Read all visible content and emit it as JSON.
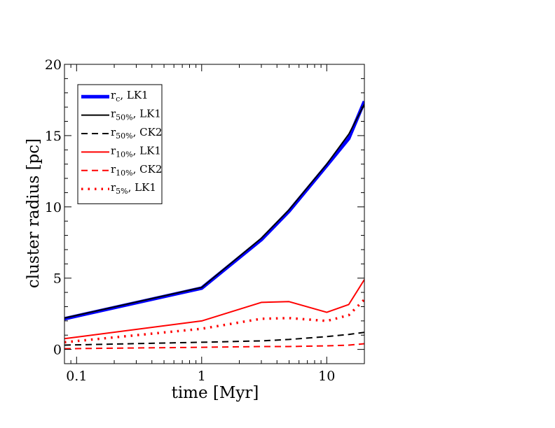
{
  "chart_data": {
    "type": "line",
    "xscale": "log",
    "xlabel": "time [Myr]",
    "ylabel": "cluster radius [pc]",
    "xlim": [
      0.08,
      20
    ],
    "ylim": [
      -1,
      20
    ],
    "xticks": [
      {
        "value": 0.1,
        "label": "0.1"
      },
      {
        "value": 1,
        "label": "1"
      },
      {
        "value": 10,
        "label": "10"
      }
    ],
    "yticks": [
      {
        "value": 0,
        "label": "0"
      },
      {
        "value": 5,
        "label": "5"
      },
      {
        "value": 10,
        "label": "10"
      },
      {
        "value": 15,
        "label": "15"
      },
      {
        "value": 20,
        "label": "20"
      }
    ],
    "legend_position": "top-left",
    "series": [
      {
        "name": "rc_lk1",
        "label_main": "r",
        "label_sub": "c",
        "label_suffix": ",    LK1",
        "color": "#0000ff",
        "style": "solid-thick",
        "x": [
          0.08,
          1,
          3,
          5,
          10,
          15,
          20
        ],
        "y": [
          2.15,
          4.3,
          7.7,
          9.7,
          12.9,
          14.8,
          17.4
        ]
      },
      {
        "name": "r50_lk1",
        "label_main": "r",
        "label_sub": "50%",
        "label_suffix": ", LK1",
        "color": "#000000",
        "style": "solid",
        "x": [
          0.08,
          1,
          3,
          5,
          10,
          15,
          20
        ],
        "y": [
          2.2,
          4.35,
          7.8,
          9.8,
          13.0,
          15.1,
          17.2
        ]
      },
      {
        "name": "r50_ck2",
        "label_main": "r",
        "label_sub": "50%",
        "label_suffix": ", CK2",
        "color": "#000000",
        "style": "dashed",
        "x": [
          0.08,
          1,
          3,
          5,
          10,
          15,
          20
        ],
        "y": [
          0.3,
          0.5,
          0.6,
          0.7,
          0.9,
          1.05,
          1.2
        ]
      },
      {
        "name": "r10_lk1",
        "label_main": "r",
        "label_sub": "10%",
        "label_suffix": ", LK1",
        "color": "#ff0000",
        "style": "solid",
        "x": [
          0.08,
          1,
          3,
          5,
          10,
          15,
          20
        ],
        "y": [
          0.75,
          2.0,
          3.3,
          3.35,
          2.6,
          3.15,
          4.9
        ]
      },
      {
        "name": "r10_ck2",
        "label_main": "r",
        "label_sub": "10%",
        "label_suffix": ", CK2",
        "color": "#ff0000",
        "style": "dashed",
        "x": [
          0.08,
          1,
          3,
          5,
          10,
          15,
          20
        ],
        "y": [
          0.05,
          0.15,
          0.2,
          0.2,
          0.25,
          0.3,
          0.4
        ]
      },
      {
        "name": "r5_lk1",
        "label_main": "r",
        "label_sub": "5%",
        "label_suffix": ",   LK1",
        "color": "#ff0000",
        "style": "dotted",
        "x": [
          0.08,
          1,
          3,
          5,
          10,
          15,
          20
        ],
        "y": [
          0.5,
          1.45,
          2.15,
          2.2,
          2.0,
          2.4,
          3.5
        ]
      }
    ]
  }
}
